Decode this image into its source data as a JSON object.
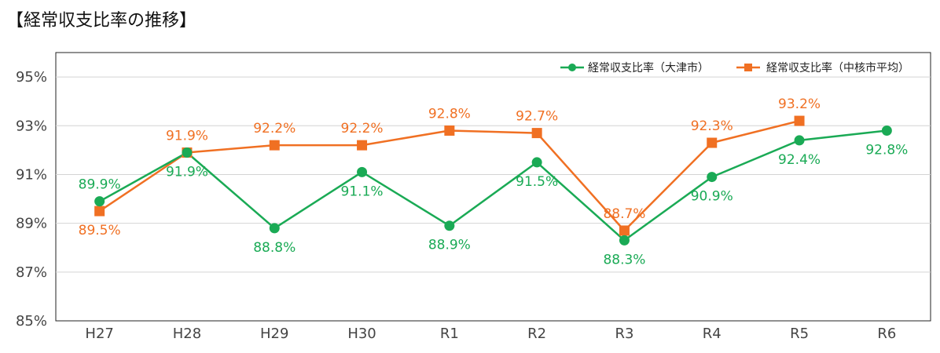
{
  "title": "【経常収支比率の推移】",
  "colors": {
    "otsu": "#1aaa55",
    "core": "#f07023",
    "grid": "#d4d4d4",
    "axis": "#222222"
  },
  "chart_data": {
    "type": "line",
    "categories": [
      "H27",
      "H28",
      "H29",
      "H30",
      "R1",
      "R2",
      "R3",
      "R4",
      "R5",
      "R6"
    ],
    "ylim": [
      85,
      96
    ],
    "yticks": [
      85,
      87,
      89,
      91,
      93,
      95
    ],
    "ytick_labels": [
      "85%",
      "87%",
      "89%",
      "91%",
      "93%",
      "95%"
    ],
    "grid": true,
    "legend_position": "top-right",
    "series": [
      {
        "name": "経常収支比率（大津市）",
        "marker": "circle",
        "values": [
          89.9,
          91.9,
          88.8,
          91.1,
          88.9,
          91.5,
          88.3,
          90.9,
          92.4,
          92.8
        ],
        "labels": [
          "89.9%",
          "91.9%",
          "88.8%",
          "91.1%",
          "88.9%",
          "91.5%",
          "88.3%",
          "90.9%",
          "92.4%",
          "92.8%"
        ]
      },
      {
        "name": "経常収支比率（中核市平均）",
        "marker": "square",
        "values": [
          89.5,
          91.9,
          92.2,
          92.2,
          92.8,
          92.7,
          88.7,
          92.3,
          93.2,
          null
        ],
        "labels": [
          "89.5%",
          "91.9%",
          "92.2%",
          "92.2%",
          "92.8%",
          "92.7%",
          "88.7%",
          "92.3%",
          "93.2%",
          null
        ]
      }
    ]
  }
}
